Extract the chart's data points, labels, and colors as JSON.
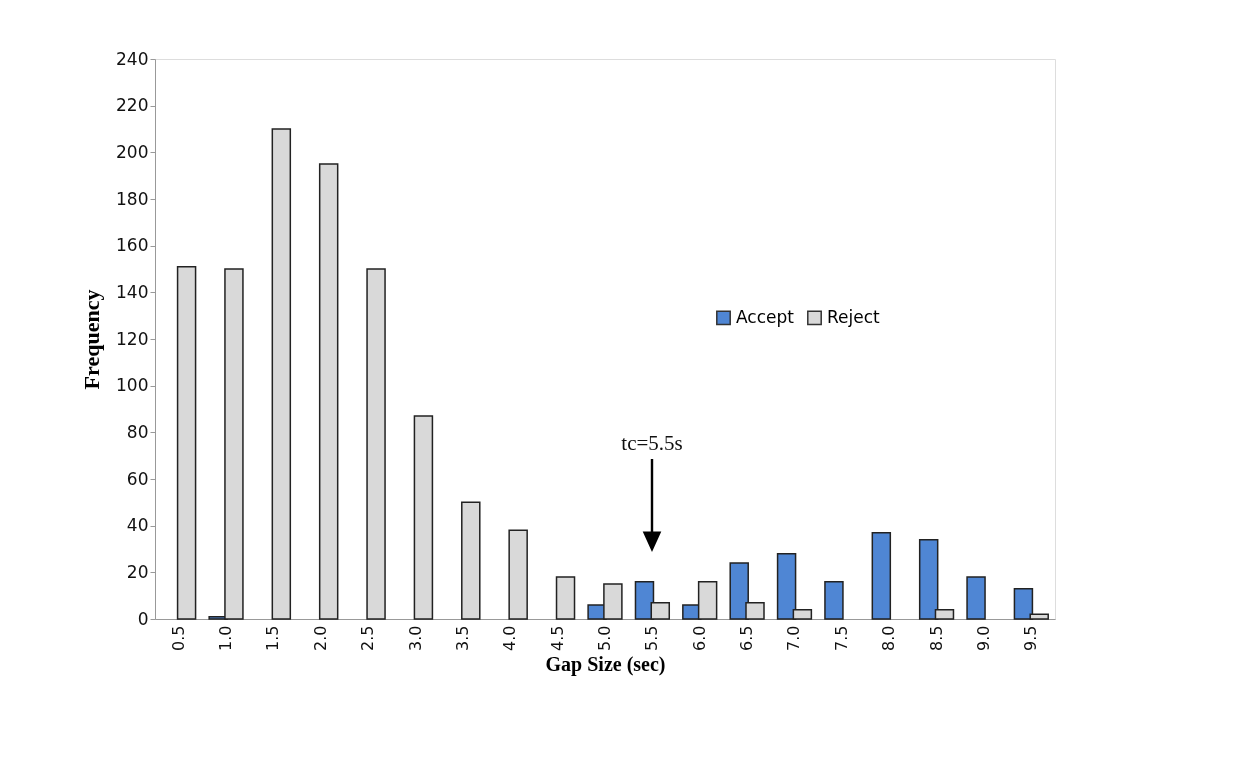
{
  "chart_data": {
    "type": "bar",
    "xlabel": "Gap Size (sec)",
    "ylabel": "Frequency",
    "categories": [
      "0.5",
      "1.0",
      "1.5",
      "2.0",
      "2.5",
      "3.0",
      "3.5",
      "4.0",
      "4.5",
      "5.0",
      "5.5",
      "6.0",
      "6.5",
      "7.0",
      "7.5",
      "8.0",
      "8.5",
      "9.0",
      "9.5"
    ],
    "series": [
      {
        "name": "Accept",
        "color": "#4f86d4",
        "values": [
          null,
          1,
          null,
          null,
          null,
          null,
          null,
          null,
          null,
          6,
          16,
          6,
          24,
          28,
          16,
          37,
          34,
          18,
          13
        ]
      },
      {
        "name": "Reject",
        "color": "#d9d9d9",
        "values": [
          151,
          150,
          210,
          195,
          150,
          87,
          50,
          38,
          18,
          15,
          7,
          16,
          7,
          4,
          null,
          null,
          4,
          null,
          2
        ]
      }
    ],
    "ylim": [
      0,
      240
    ],
    "yticks": [
      0,
      20,
      40,
      60,
      80,
      100,
      120,
      140,
      160,
      180,
      200,
      220,
      240
    ],
    "annotations": [
      "tc=5.5s"
    ],
    "legend": "right",
    "grid": false
  }
}
